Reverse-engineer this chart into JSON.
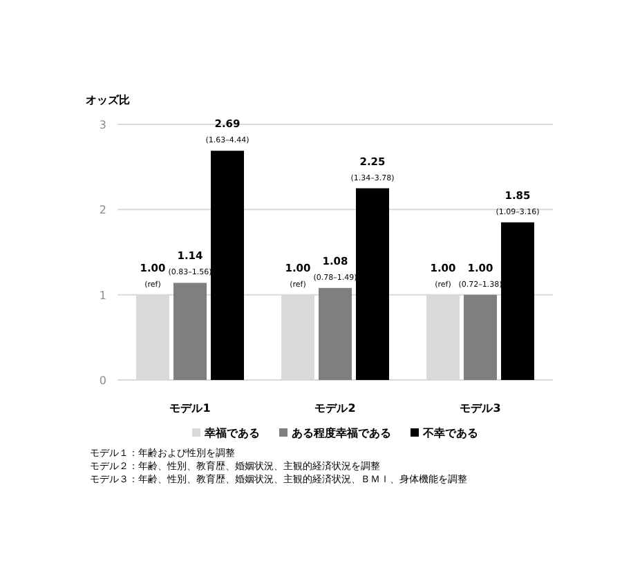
{
  "chart_data": {
    "type": "bar",
    "ylabel": "オッズ比",
    "categories": [
      "モデル1",
      "モデル2",
      "モデル3"
    ],
    "series": [
      {
        "name": "幸福である",
        "color": "#d9d9d9",
        "values": [
          1.0,
          1.0,
          1.0
        ],
        "value_labels": [
          "1.00\n(ref)",
          "1.00\n(ref)",
          "1.00\n(ref)"
        ]
      },
      {
        "name": "ある程度幸福である",
        "color": "#7f7f7f",
        "values": [
          1.14,
          1.08,
          1.0
        ],
        "value_labels": [
          "1.14\n(0.83–1.56)",
          "1.08\n(0.78–1.49)",
          "1.00\n(0.72–1.38)"
        ]
      },
      {
        "name": "不幸である",
        "color": "#000000",
        "values": [
          2.69,
          2.25,
          1.85
        ],
        "value_labels": [
          "2.69\n(1.63–4.44)",
          "2.25\n(1.34–3.78)",
          "1.85\n(1.09–3.16)"
        ]
      }
    ],
    "ylim": [
      0,
      3
    ],
    "yticks": [
      0,
      1,
      2,
      3
    ],
    "grid": "y",
    "legend": "bottom",
    "annotations": [
      "モデル１：年齢および性別を調整",
      "モデル２：年齢、性別、教育歴、婚姻状況、主観的経済状況を調整",
      "モデル３：年齢、性別、教育歴、婚姻状況、主観的経済状況、ＢＭＩ、身体機能を調整"
    ]
  }
}
